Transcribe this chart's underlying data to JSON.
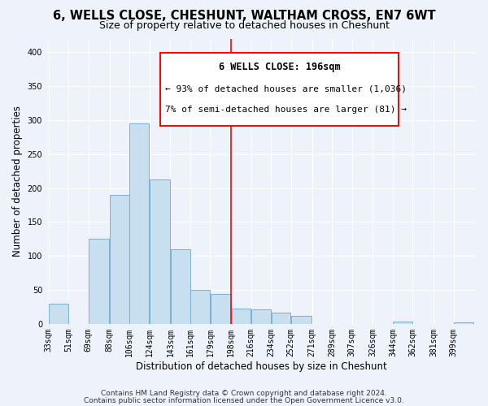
{
  "title": "6, WELLS CLOSE, CHESHUNT, WALTHAM CROSS, EN7 6WT",
  "subtitle": "Size of property relative to detached houses in Cheshunt",
  "xlabel": "Distribution of detached houses by size in Cheshunt",
  "ylabel": "Number of detached properties",
  "footnote1": "Contains HM Land Registry data © Crown copyright and database right 2024.",
  "footnote2": "Contains public sector information licensed under the Open Government Licence v3.0.",
  "bar_labels": [
    "33sqm",
    "51sqm",
    "69sqm",
    "88sqm",
    "106sqm",
    "124sqm",
    "143sqm",
    "161sqm",
    "179sqm",
    "198sqm",
    "216sqm",
    "234sqm",
    "252sqm",
    "271sqm",
    "289sqm",
    "307sqm",
    "326sqm",
    "344sqm",
    "362sqm",
    "381sqm",
    "399sqm"
  ],
  "bar_heights": [
    30,
    0,
    125,
    190,
    295,
    212,
    110,
    50,
    44,
    23,
    21,
    17,
    12,
    0,
    0,
    0,
    0,
    3,
    0,
    0,
    2
  ],
  "bar_color": "#c8dff0",
  "bar_edge_color": "#7ab0d4",
  "reference_line_label": "6 WELLS CLOSE: 196sqm",
  "annotation_line1": "← 93% of detached houses are smaller (1,036)",
  "annotation_line2": "7% of semi-detached houses are larger (81) →",
  "ylim": [
    0,
    420
  ],
  "bin_edges": [
    33,
    51,
    69,
    88,
    106,
    124,
    143,
    161,
    179,
    198,
    216,
    234,
    252,
    271,
    289,
    307,
    326,
    344,
    362,
    381,
    399,
    417
  ],
  "bg_color": "#eef2fa",
  "title_fontsize": 10.5,
  "subtitle_fontsize": 9,
  "axis_label_fontsize": 8.5,
  "tick_fontsize": 7,
  "annotation_title_fontsize": 8.5,
  "annotation_body_fontsize": 8,
  "footnote_fontsize": 6.5,
  "yticks": [
    0,
    50,
    100,
    150,
    200,
    250,
    300,
    350,
    400
  ]
}
